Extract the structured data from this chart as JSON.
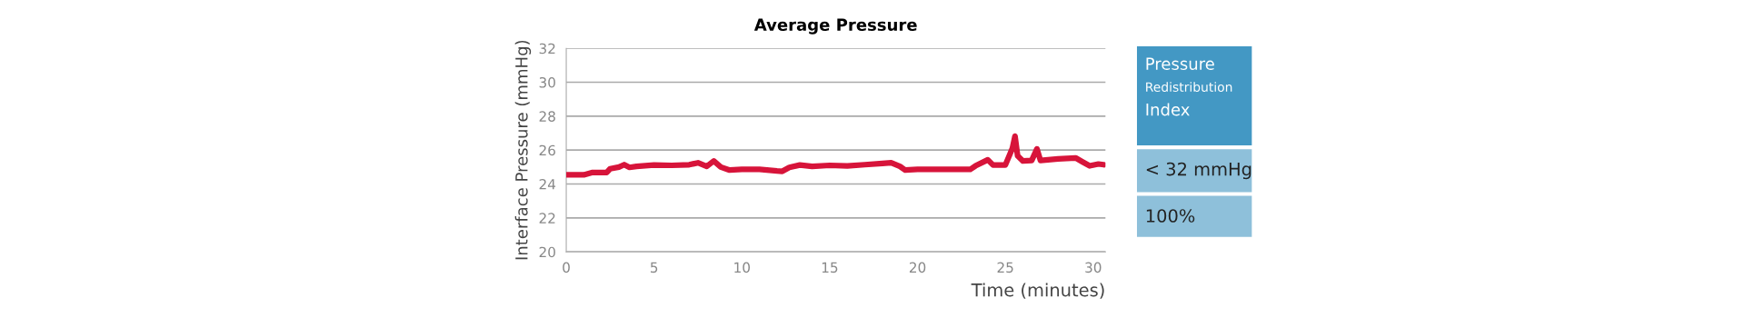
{
  "chart_data": [
    {
      "type": "line",
      "title": "Average Pressure",
      "xlabel": "Time (minutes)",
      "ylabel": "Interface Pressure (mmHg)",
      "xlim": [
        0,
        30.7
      ],
      "xticks": [
        0,
        5,
        10,
        15,
        20,
        25,
        30
      ],
      "ylim": [
        20,
        32
      ],
      "yticks": [
        20,
        22,
        24,
        26,
        28,
        30,
        32
      ],
      "grid": "y",
      "legend": false,
      "series": [
        {
          "color": "#d7143a",
          "x": [
            0,
            1,
            1.5,
            2.3,
            2.5,
            3,
            3.3,
            3.6,
            4,
            5,
            6,
            7,
            7.5,
            8,
            8.4,
            8.8,
            9.3,
            10,
            11,
            12,
            12.3,
            12.7,
            13.3,
            14,
            15,
            16,
            17,
            18,
            18.5,
            19,
            19.3,
            20,
            21,
            22,
            23,
            23.3,
            24,
            24.3,
            25,
            25.4,
            25.55,
            25.7,
            26,
            26.5,
            26.8,
            27,
            28,
            29,
            29.4,
            29.8,
            30.3,
            30.6
          ],
          "values": [
            24.54,
            24.54,
            24.68,
            24.68,
            24.9,
            25.0,
            25.14,
            24.98,
            25.04,
            25.12,
            25.1,
            25.14,
            25.25,
            25.04,
            25.36,
            25.0,
            24.82,
            24.86,
            24.86,
            24.77,
            24.75,
            24.98,
            25.12,
            25.04,
            25.1,
            25.07,
            25.14,
            25.21,
            25.25,
            25.04,
            24.82,
            24.86,
            24.86,
            24.86,
            24.86,
            25.07,
            25.43,
            25.12,
            25.12,
            26.1,
            26.82,
            25.66,
            25.36,
            25.39,
            26.07,
            25.39,
            25.48,
            25.54,
            25.3,
            25.07,
            25.18,
            25.14
          ]
        }
      ]
    },
    {
      "type": "other",
      "colors": [
        "#4398c4",
        "#8ec0da",
        "#8ec0da"
      ],
      "annotations": [
        "Pressure",
        "Redistribution",
        "Index",
        "< 32 mmHg",
        "100%"
      ]
    }
  ]
}
